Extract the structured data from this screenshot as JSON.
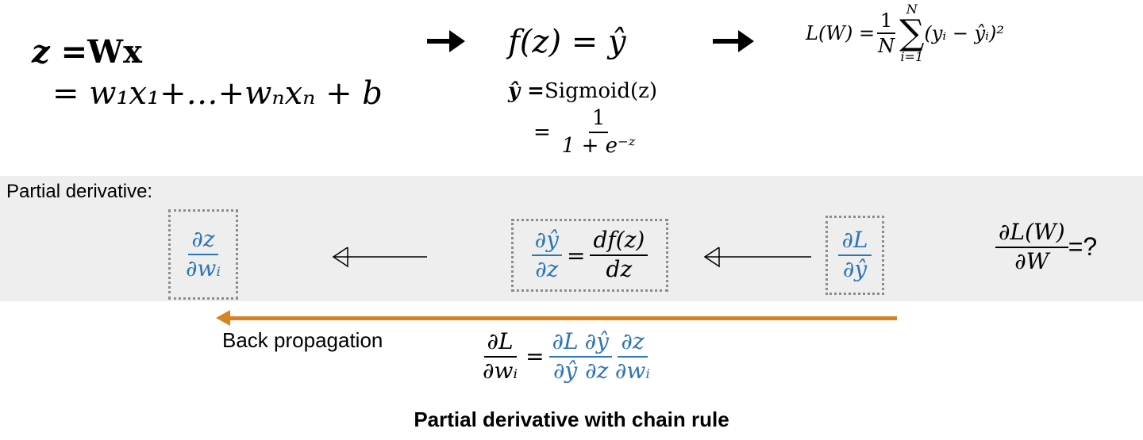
{
  "forward": {
    "eq1_lhs": "z = ",
    "eq1_rhs": "Wx",
    "eq2": "= w₁x₁+…+wₙxₙ + b",
    "activation": "f(z) = ŷ",
    "sigmoid_lhs": "ŷ = ",
    "sigmoid_rhs": "Sigmoid(z)",
    "sigmoid_eq": "=",
    "sigmoid_num": "1",
    "sigmoid_den": "1 + e⁻ᶻ",
    "loss_lhs": "L(W) = ",
    "loss_frac_num": "1",
    "loss_frac_den": "N",
    "loss_sum_top": "N",
    "loss_sum_bottom": "i=1",
    "loss_body": "(yᵢ − ŷᵢ)²"
  },
  "band": {
    "label": "Partial derivative:",
    "dz_dwi_num": "∂z",
    "dz_dwi_den": "∂wᵢ",
    "dyhat_dz_num": "∂ŷ",
    "dyhat_dz_den": "∂z",
    "eq": "=",
    "df_num": "df(z)",
    "df_den": "dz",
    "dL_dyhat_num": "∂L",
    "dL_dyhat_den": "∂ŷ",
    "dLW_num": "∂L(W)",
    "dLW_den": "∂W",
    "question": "=?"
  },
  "backprop": {
    "label": "Back propagation",
    "lhs_num": "∂L",
    "lhs_den": "∂wᵢ",
    "eq": "=",
    "t1_num": "∂L",
    "t1_den": "∂ŷ",
    "t2_num": "∂ŷ",
    "t2_den": "∂z",
    "t3_num": "∂z",
    "t3_den": "∂wᵢ"
  },
  "caption": "Partial derivative with chain rule",
  "colors": {
    "blue": "#2e75b6",
    "orange": "#d9821f",
    "band": "#eeeeee",
    "dotted": "#8c8c8c"
  }
}
